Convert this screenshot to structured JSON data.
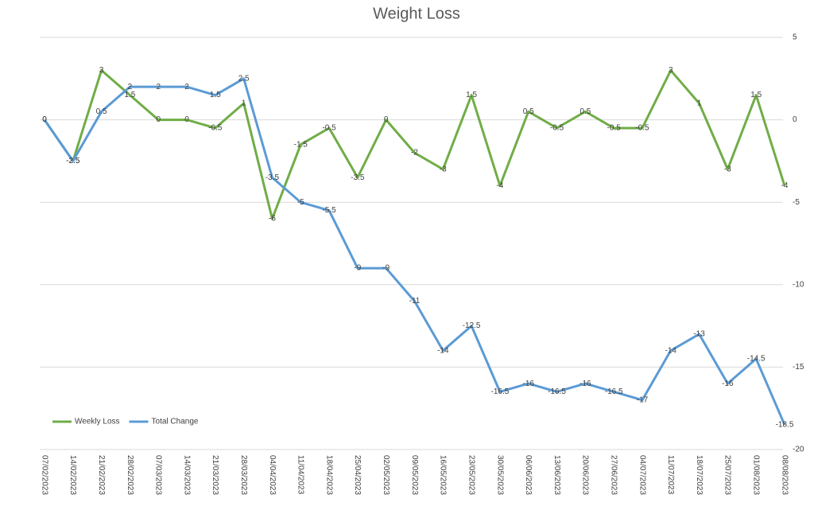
{
  "chart_data": {
    "type": "line",
    "title": "Weight Loss",
    "x": [
      "07/02/2023",
      "14/02/2023",
      "21/02/2023",
      "28/02/2023",
      "07/03/2023",
      "14/03/2023",
      "21/03/2023",
      "28/03/2023",
      "04/04/2023",
      "11/04/2023",
      "18/04/2023",
      "25/04/2023",
      "02/05/2023",
      "09/05/2023",
      "16/05/2023",
      "23/05/2023",
      "30/05/2023",
      "06/06/2023",
      "13/06/2023",
      "20/06/2023",
      "27/06/2023",
      "04/07/2023",
      "11/07/2023",
      "18/07/2023",
      "25/07/2023",
      "01/08/2023",
      "08/08/2023"
    ],
    "series": [
      {
        "name": "Weekly Loss",
        "color": "#70ad47",
        "values": [
          0,
          -2.5,
          3,
          1.5,
          0,
          0,
          -0.5,
          1,
          -6,
          -1.5,
          -0.5,
          -3.5,
          0,
          -2,
          -3,
          1.5,
          -4,
          0.5,
          -0.5,
          0.5,
          -0.5,
          -0.5,
          3,
          1,
          -3,
          1.5,
          -4
        ]
      },
      {
        "name": "Total Change",
        "color": "#5b9bd5",
        "values": [
          0,
          -2.5,
          0.5,
          2,
          2,
          2,
          1.5,
          2.5,
          -3.5,
          -5,
          -5.5,
          -9,
          -9,
          -11,
          -14,
          -12.5,
          -16.5,
          -16,
          -16.5,
          -16,
          -16.5,
          -17,
          -14,
          -13,
          -16,
          -14.5,
          -18.5
        ]
      }
    ],
    "ylim": [
      -20,
      5
    ],
    "yticks": [
      5,
      0,
      -5,
      -10,
      -15,
      -20
    ],
    "y_axis_side": "right",
    "grid": true,
    "legend": "bottom-left"
  }
}
